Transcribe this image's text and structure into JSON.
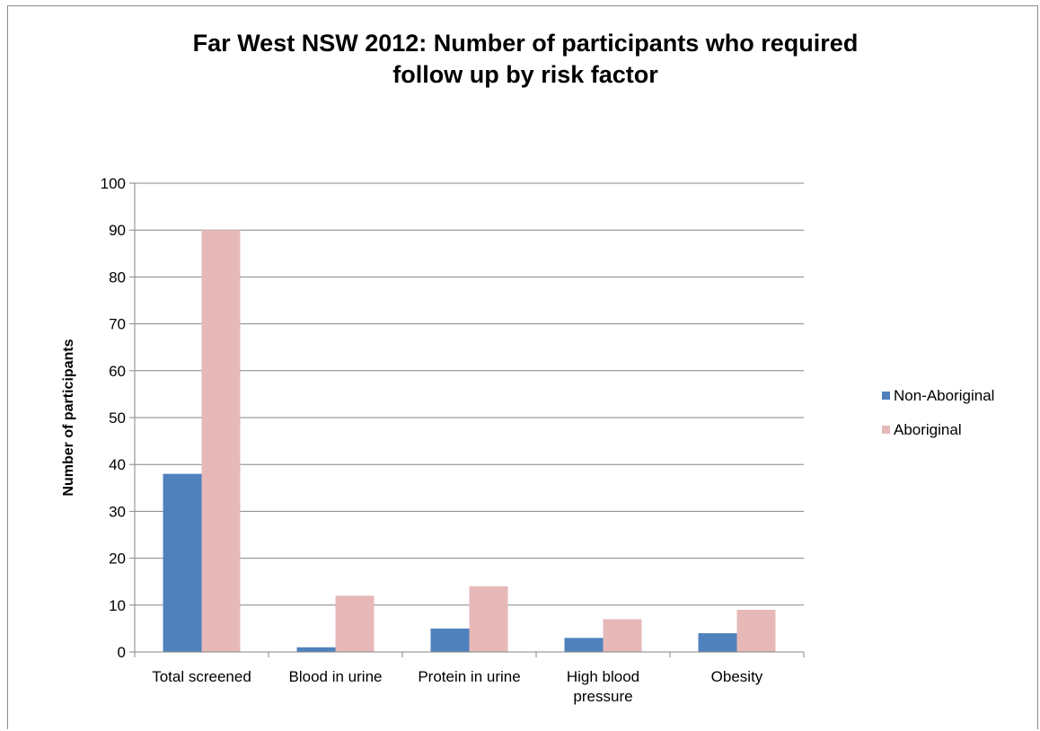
{
  "chart_data": {
    "type": "bar",
    "title": "Far West NSW 2012: Number of participants who required follow up by risk factor",
    "title_lines": [
      "Far West NSW 2012: Number of participants who required",
      "follow up by risk factor"
    ],
    "xlabel": "",
    "ylabel": "Number of participants",
    "ylim": [
      0,
      100
    ],
    "yticks": [
      0,
      10,
      20,
      30,
      40,
      50,
      60,
      70,
      80,
      90,
      100
    ],
    "grid": true,
    "legend_position": "right",
    "categories": [
      "Total screened",
      "Blood in urine",
      "Protein in urine",
      "High blood pressure",
      "Obesity"
    ],
    "category_lines": [
      [
        "Total screened"
      ],
      [
        "Blood in urine"
      ],
      [
        "Protein in urine"
      ],
      [
        "High blood",
        "pressure"
      ],
      [
        "Obesity"
      ]
    ],
    "series": [
      {
        "name": "Non-Aboriginal",
        "color": "#4f81bd",
        "values": [
          38,
          1,
          5,
          3,
          4
        ]
      },
      {
        "name": "Aboriginal",
        "color": "#e6b9b8",
        "values": [
          90,
          12,
          14,
          7,
          9
        ]
      }
    ]
  }
}
